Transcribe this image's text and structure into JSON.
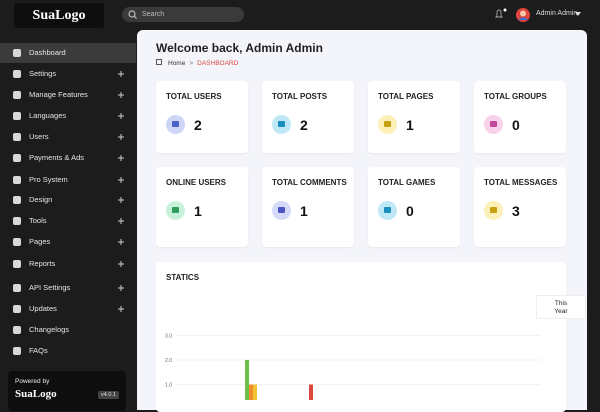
{
  "header": {
    "logo": "SuaLogo",
    "search_placeholder": "Search",
    "user_name": "Admin Admin"
  },
  "sidebar": {
    "items": [
      {
        "label": "Dashboard",
        "expandable": false,
        "active": true
      },
      {
        "label": "Settings",
        "expandable": true
      },
      {
        "label": "Manage Features",
        "expandable": true
      },
      {
        "label": "Languages",
        "expandable": true
      },
      {
        "label": "Users",
        "expandable": true
      },
      {
        "label": "Payments & Ads",
        "expandable": true
      },
      {
        "label": "Pro System",
        "expandable": true
      },
      {
        "label": "Design",
        "expandable": true
      },
      {
        "label": "Tools",
        "expandable": true
      },
      {
        "label": "Pages",
        "expandable": true
      },
      {
        "label": "Reports",
        "expandable": true
      },
      {
        "label": "API Settings",
        "expandable": true
      },
      {
        "label": "Updates",
        "expandable": true
      },
      {
        "label": "Changelogs",
        "expandable": false
      },
      {
        "label": "FAQs",
        "expandable": false
      }
    ],
    "footer": {
      "powered_by": "Powered by",
      "logo": "SuaLogo",
      "version": "v4.0.1"
    }
  },
  "page": {
    "title": "Welcome back, Admin Admin",
    "breadcrumb": [
      "Home",
      "DASHBOARD"
    ]
  },
  "stats": [
    {
      "label": "TOTAL USERS",
      "value": 2,
      "color": "#cdd6f6",
      "icon_color": "#4a63c8"
    },
    {
      "label": "TOTAL POSTS",
      "value": 2,
      "color": "#bfe8f6",
      "icon_color": "#1a8fbf"
    },
    {
      "label": "TOTAL PAGES",
      "value": 1,
      "color": "#fdf0b6",
      "icon_color": "#c9a012"
    },
    {
      "label": "TOTAL GROUPS",
      "value": 0,
      "color": "#f8d2ea",
      "icon_color": "#c2479a"
    },
    {
      "label": "ONLINE USERS",
      "value": 1,
      "color": "#c9f1da",
      "icon_color": "#2f9e5f"
    },
    {
      "label": "TOTAL COMMENTS",
      "value": 1,
      "color": "#d5d9f8",
      "icon_color": "#4a55c8"
    },
    {
      "label": "TOTAL GAMES",
      "value": 0,
      "color": "#bfe8f6",
      "icon_color": "#1a8fbf"
    },
    {
      "label": "TOTAL MESSAGES",
      "value": 3,
      "color": "#fdf0b6",
      "icon_color": "#c9a012"
    }
  ],
  "statics": {
    "title": "STATICS",
    "legend": "This Year",
    "yticks": [
      {
        "value": 1,
        "label": "1.0"
      },
      {
        "value": 2,
        "label": "2.0"
      },
      {
        "value": 3,
        "label": "3.0"
      }
    ],
    "bars": [
      {
        "value": 2,
        "color": "#6cc04a"
      },
      {
        "value": 1,
        "color": "#f08c2e"
      },
      {
        "value": 1,
        "color": "#f2c230"
      },
      {
        "value": 1,
        "color": "#d9483b"
      }
    ]
  }
}
